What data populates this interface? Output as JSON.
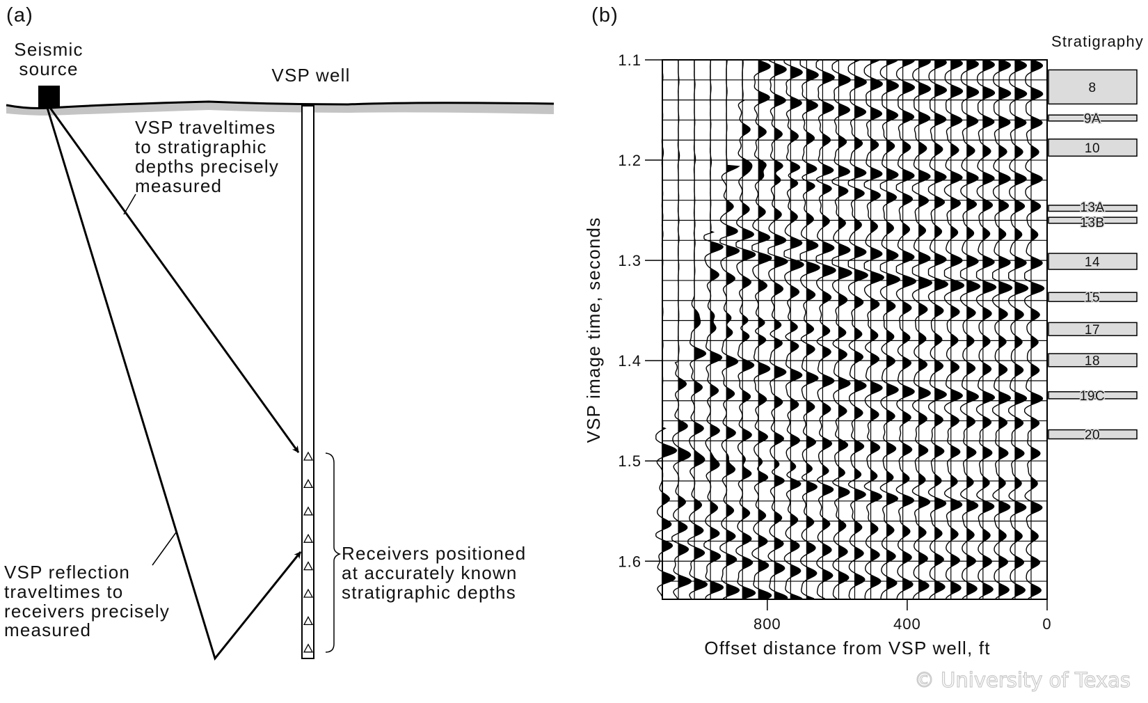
{
  "panel_a": {
    "label": "(a)",
    "source_label": [
      "Seismic",
      "source"
    ],
    "well_label": "VSP well",
    "direct_note": [
      "VSP traveltimes",
      "to stratigraphic",
      "depths precisely",
      "measured"
    ],
    "reflection_note": [
      "VSP reflection",
      "traveltimes to",
      "receivers precisely",
      "measured"
    ],
    "receivers_note": [
      "Receivers positioned",
      "at accurately known",
      "stratigraphic depths"
    ],
    "receiver_count": 8
  },
  "panel_b": {
    "label": "(b)",
    "strat_title": "Stratigraphy",
    "watermark": "© University of Texas"
  },
  "chart_data": {
    "type": "seismic-section",
    "ylabel": "VSP image time, seconds",
    "xlabel": "Offset distance from VSP well, ft",
    "ylim": [
      1.1,
      1.638
    ],
    "xlim": [
      1100,
      0
    ],
    "yticks": [
      1.1,
      1.2,
      1.3,
      1.4,
      1.5,
      1.6
    ],
    "ytick_labels": [
      "1.1",
      "1.2",
      "1.3",
      "1.4",
      "1.5",
      "1.6"
    ],
    "xticks": [
      800,
      400,
      0
    ],
    "xtick_labels": [
      "800",
      "400",
      "0"
    ],
    "grid_time_step": 0.02,
    "trace_count": 24,
    "strata": [
      {
        "name": "8",
        "top": 1.11,
        "bottom": 1.144
      },
      {
        "name": "9A",
        "top": 1.155,
        "bottom": 1.161
      },
      {
        "name": "10",
        "top": 1.179,
        "bottom": 1.196
      },
      {
        "name": "13A",
        "top": 1.245,
        "bottom": 1.251
      },
      {
        "name": "13B",
        "top": 1.257,
        "bottom": 1.263
      },
      {
        "name": "14",
        "top": 1.293,
        "bottom": 1.309
      },
      {
        "name": "15",
        "top": 1.332,
        "bottom": 1.341
      },
      {
        "name": "17",
        "top": 1.362,
        "bottom": 1.375
      },
      {
        "name": "18",
        "top": 1.393,
        "bottom": 1.406
      },
      {
        "name": "19C",
        "top": 1.431,
        "bottom": 1.438
      },
      {
        "name": "20",
        "top": 1.469,
        "bottom": 1.478
      }
    ]
  }
}
